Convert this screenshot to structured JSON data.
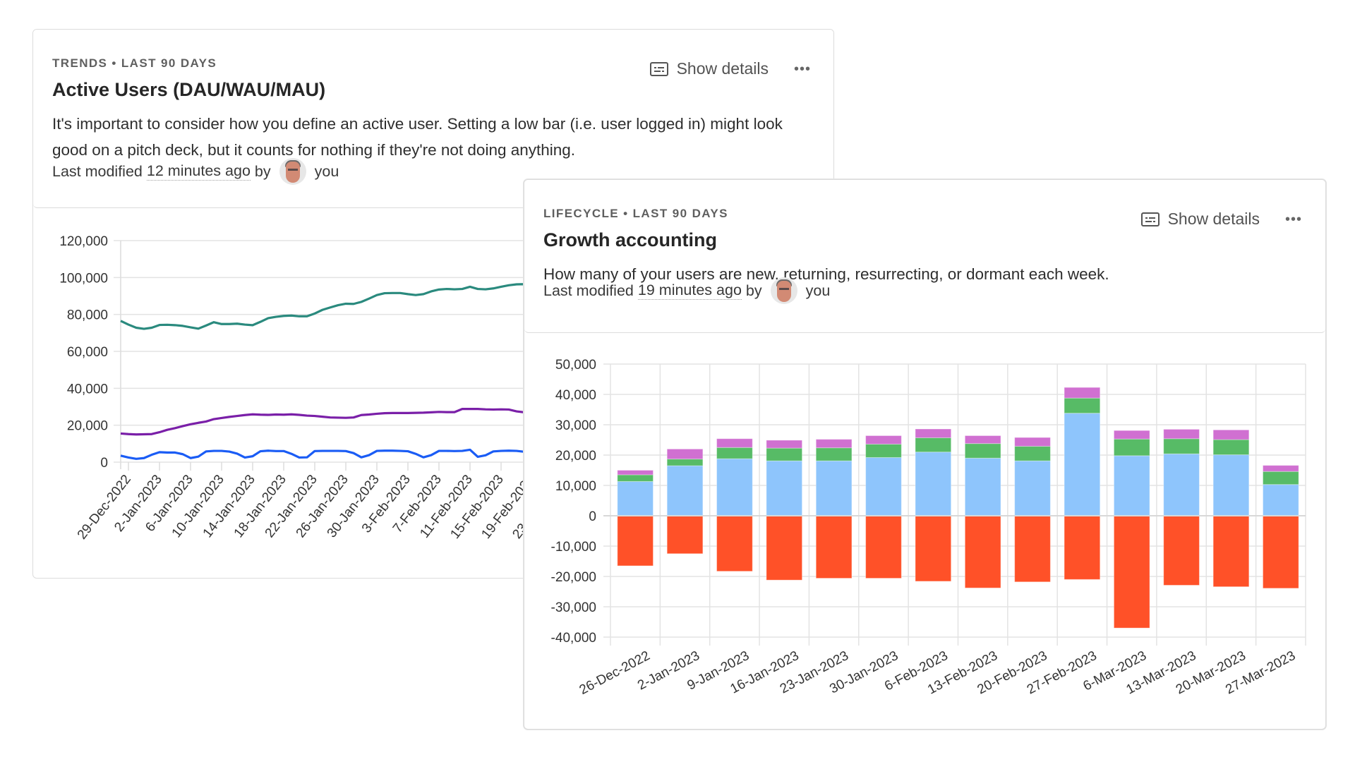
{
  "cards": [
    {
      "eyebrow": "TRENDS • LAST 90 DAYS",
      "title": "Active Users (DAU/WAU/MAU)",
      "description": "It's important to consider how you define an active user. Setting a low bar (i.e. user logged in) might look good on a pitch deck, but it counts for nothing if they're not doing anything.",
      "meta_prefix": "Last modified",
      "meta_time": "12 minutes ago",
      "meta_by": "by",
      "meta_user": "you",
      "show_details_label": "Show details",
      "more_label": "•••"
    },
    {
      "eyebrow": "LIFECYCLE • LAST 90 DAYS",
      "title": "Growth accounting",
      "description": "How many of your users are new, returning, resurrecting, or dormant each week.",
      "meta_prefix": "Last modified",
      "meta_time": "19 minutes ago",
      "meta_by": "by",
      "meta_user": "you",
      "show_details_label": "Show details",
      "more_label": "•••"
    }
  ],
  "chart_data": [
    {
      "type": "line",
      "title": "Active Users (DAU/WAU/MAU)",
      "xlabel": "",
      "ylabel": "",
      "ylim": [
        0,
        120000
      ],
      "yticks": [
        "0",
        "20,000",
        "40,000",
        "60,000",
        "80,000",
        "100,000",
        "120,000"
      ],
      "ytick_values": [
        0,
        20000,
        40000,
        60000,
        80000,
        100000,
        120000
      ],
      "grid": true,
      "x_tick_labels": [
        "29-Dec-2022",
        "2-Jan-2023",
        "6-Jan-2023",
        "10-Jan-2023",
        "14-Jan-2023",
        "18-Jan-2023",
        "22-Jan-2023",
        "26-Jan-2023",
        "30-Jan-2023",
        "3-Feb-2023",
        "7-Feb-2023",
        "11-Feb-2023",
        "15-Feb-2023",
        "19-Feb-2023",
        "23-Feb-2023"
      ],
      "x_visible_days": 62,
      "series": [
        {
          "name": "MAU",
          "color": "#2a8a7e",
          "values": [
            76500,
            74500,
            72800,
            72200,
            72800,
            74300,
            74400,
            74200,
            73800,
            73000,
            72300,
            74000,
            75800,
            74800,
            74800,
            75000,
            74500,
            74200,
            76000,
            78000,
            78700,
            79200,
            79400,
            79000,
            79000,
            80500,
            82500,
            83800,
            85000,
            85800,
            85700,
            86800,
            88600,
            90500,
            91500,
            91600,
            91600,
            91000,
            90500,
            91000,
            92500,
            93500,
            93800,
            93600,
            93800,
            95000,
            93800,
            93600,
            94100,
            95000,
            95800,
            96300,
            96400,
            96200,
            96200,
            96100,
            95000,
            94200,
            94000,
            93800,
            93700,
            93500
          ]
        },
        {
          "name": "WAU",
          "color": "#7a1fa8",
          "values": [
            15500,
            15200,
            15000,
            15100,
            15200,
            16200,
            17500,
            18400,
            19500,
            20500,
            21300,
            22000,
            23300,
            23900,
            24500,
            25000,
            25500,
            25900,
            25700,
            25600,
            25800,
            25700,
            25900,
            25600,
            25200,
            25000,
            24600,
            24200,
            24100,
            24000,
            24200,
            25500,
            25800,
            26200,
            26500,
            26600,
            26600,
            26600,
            26700,
            26800,
            27000,
            27200,
            27100,
            27100,
            28800,
            28800,
            28800,
            28600,
            28500,
            28600,
            28500,
            27500,
            27000,
            26800,
            26700,
            26600,
            26600,
            26600,
            26600,
            26600,
            26600,
            26600
          ]
        },
        {
          "name": "DAU",
          "color": "#1a5cf5",
          "values": [
            3500,
            2500,
            1800,
            2200,
            4000,
            5400,
            5200,
            5200,
            4300,
            2200,
            3000,
            5800,
            6100,
            6100,
            5700,
            4600,
            2500,
            3200,
            5900,
            6200,
            6000,
            6000,
            4500,
            2500,
            2600,
            6000,
            6100,
            6100,
            6100,
            6000,
            4900,
            2600,
            3800,
            6100,
            6200,
            6200,
            6100,
            5900,
            4500,
            2600,
            3800,
            6100,
            6100,
            6000,
            6100,
            6700,
            2900,
            3700,
            5800,
            6100,
            6200,
            6100,
            5600,
            2800,
            3000,
            3000,
            3000,
            3000,
            3000,
            3000,
            3000,
            3000
          ]
        }
      ]
    },
    {
      "type": "bar",
      "stacked": true,
      "title": "Growth accounting",
      "xlabel": "",
      "ylabel": "",
      "ylim": [
        -40000,
        50000
      ],
      "yticks": [
        "-40,000",
        "-30,000",
        "-20,000",
        "-10,000",
        "0",
        "10,000",
        "20,000",
        "30,000",
        "40,000",
        "50,000"
      ],
      "ytick_values": [
        -40000,
        -30000,
        -20000,
        -10000,
        0,
        10000,
        20000,
        30000,
        40000,
        50000
      ],
      "grid": true,
      "categories": [
        "26-Dec-2022",
        "2-Jan-2023",
        "9-Jan-2023",
        "16-Jan-2023",
        "23-Jan-2023",
        "30-Jan-2023",
        "6-Feb-2023",
        "13-Feb-2023",
        "20-Feb-2023",
        "27-Feb-2023",
        "6-Mar-2023",
        "13-Mar-2023",
        "20-Mar-2023",
        "27-Mar-2023"
      ],
      "series": [
        {
          "name": "Returning",
          "color": "#8ec5fc",
          "values": [
            11300,
            16500,
            18800,
            18100,
            18100,
            19200,
            21000,
            19000,
            18100,
            33800,
            19800,
            20400,
            20100,
            10300
          ]
        },
        {
          "name": "New",
          "color": "#57bb66",
          "values": [
            2200,
            2200,
            3700,
            4200,
            4300,
            4400,
            4700,
            4800,
            4800,
            5000,
            5500,
            5000,
            5000,
            4300
          ]
        },
        {
          "name": "Resurrecting",
          "color": "#d070d1",
          "values": [
            1500,
            3300,
            2900,
            2600,
            2800,
            2800,
            2900,
            2600,
            2900,
            3500,
            2800,
            3100,
            3200,
            2000
          ]
        },
        {
          "name": "Dormant",
          "color": "#ff5128",
          "values": [
            -16500,
            -12500,
            -18300,
            -21200,
            -20600,
            -20600,
            -21600,
            -23800,
            -21800,
            -21000,
            -37000,
            -22900,
            -23400,
            -23900
          ]
        }
      ]
    }
  ]
}
